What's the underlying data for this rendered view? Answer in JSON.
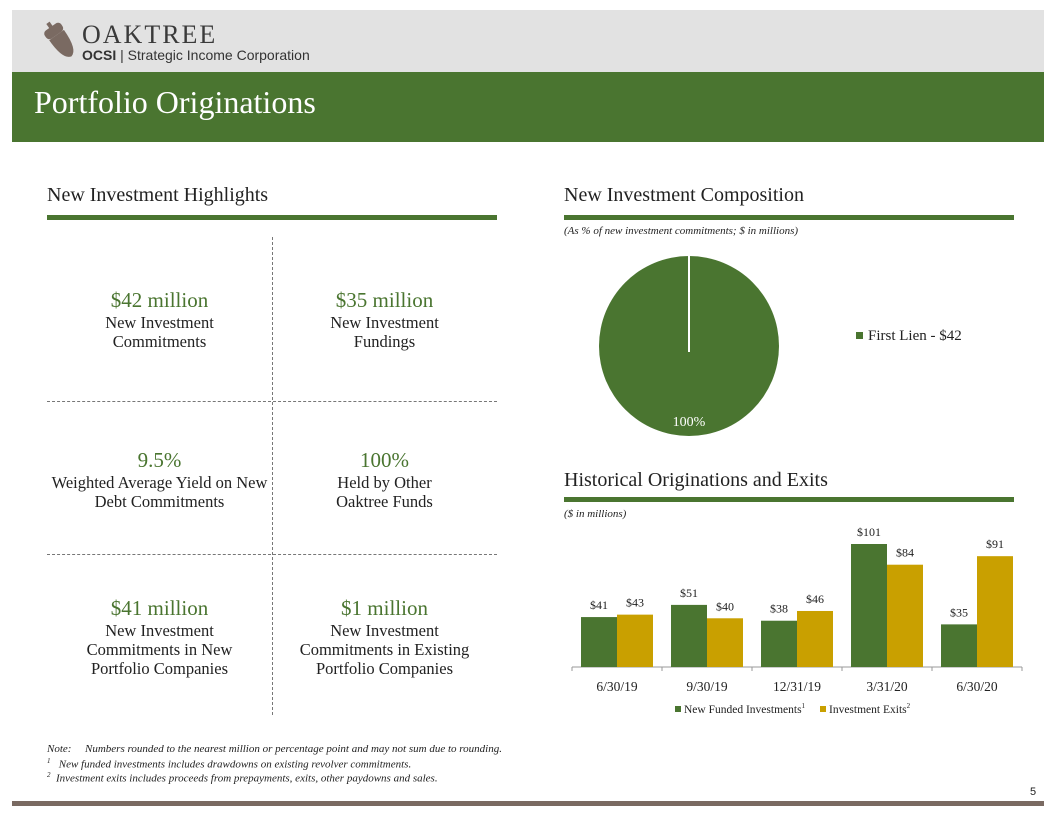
{
  "header": {
    "brand": "OAKTREE",
    "sub_bold": "OCSI",
    "sub_rest": " | Strategic Income Corporation",
    "title": "Portfolio Originations"
  },
  "highlights": {
    "title": "New Investment Highlights",
    "cells": [
      {
        "value": "$42 million",
        "label": "New Investment Commitments"
      },
      {
        "value": "$35 million",
        "label": "New Investment Fundings"
      },
      {
        "value": "9.5%",
        "label": "Weighted Average Yield on New Debt Commitments"
      },
      {
        "value": "100%",
        "label": "Held by Other Oaktree Funds"
      },
      {
        "value": "$41 million",
        "label": "New Investment Commitments in New Portfolio Companies"
      },
      {
        "value": "$1 million",
        "label": "New Investment Commitments in Existing Portfolio Companies"
      }
    ]
  },
  "composition": {
    "title": "New Investment Composition",
    "caption": "(As % of new investment commitments; $ in millions)"
  },
  "historical": {
    "title": "Historical Originations and Exits",
    "caption": "($ in millions)"
  },
  "chart_data": [
    {
      "type": "pie",
      "slices": [
        {
          "name": "First Lien - $42",
          "value": 100,
          "label": "100%"
        }
      ],
      "legend": "right",
      "colors": [
        "#4a7530"
      ]
    },
    {
      "type": "bar",
      "categories": [
        "6/30/19",
        "9/30/19",
        "12/31/19",
        "3/31/20",
        "6/30/20"
      ],
      "series": [
        {
          "name": "New Funded Investments",
          "sup": "1",
          "values": [
            41,
            51,
            38,
            101,
            35
          ],
          "color": "#4a7530"
        },
        {
          "name": "Investment Exits",
          "sup": "2",
          "values": [
            43,
            40,
            46,
            84,
            91
          ],
          "color": "#c9a000"
        }
      ],
      "value_prefix": "$",
      "ylim": [
        0,
        105
      ],
      "legend": "bottom"
    }
  ],
  "footnotes": {
    "note_label": "Note:",
    "note": "Numbers rounded to the nearest million or percentage point and may not sum due to rounding.",
    "f1_mark": "1",
    "f1": "New funded investments includes drawdowns on existing revolver commitments.",
    "f2_mark": "2",
    "f2": "Investment exits includes proceeds from prepayments, exits, other paydowns and sales."
  },
  "page_number": "5"
}
